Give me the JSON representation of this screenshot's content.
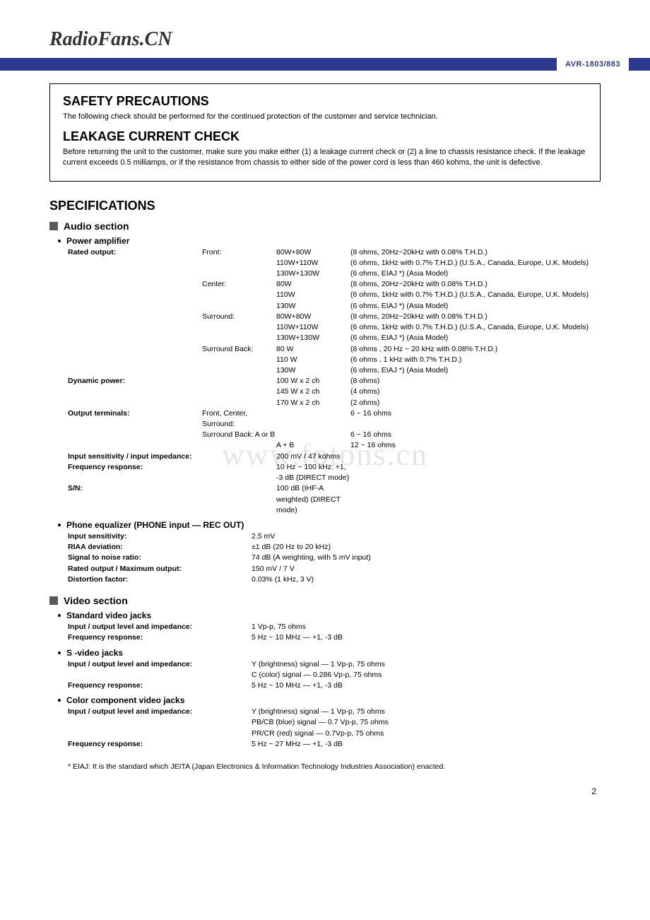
{
  "brand": "RadioFans.CN",
  "header_model": "AVR-1803/883",
  "colors": {
    "bar_bg": "#2b3a8f",
    "bar_text": "#2b3a8f",
    "square": "#5a5a5a"
  },
  "safety_box": {
    "h1": "SAFETY PRECAUTIONS",
    "p1": "The following check should be performed for the continued protection of the customer and service technician.",
    "h2": "LEAKAGE CURRENT CHECK",
    "p2": "Before returning the unit to the customer, make sure you make either (1) a leakage current check or (2) a line to chassis resistance check. If the leakage current exceeds 0.5 milliamps, or if the resistance from chassis to either side of the power cord is less than 460 kohms, the unit is defective."
  },
  "specs_title": "SPECIFICATIONS",
  "audio": {
    "title": "Audio section",
    "power_amp": {
      "title": "Power amplifier",
      "rows": [
        {
          "label": "Rated output:",
          "a": "Front:",
          "b": "80W+80W",
          "c": "(8 ohms, 20Hz~20kHz with 0.08% T.H.D.)"
        },
        {
          "label": "",
          "a": "",
          "b": "110W+110W",
          "c": "(6 ohms, 1kHz with 0.7% T.H.D.) (U.S.A., Canada, Europe, U.K. Models)"
        },
        {
          "label": "",
          "a": "",
          "b": "130W+130W",
          "c": "(6 ohms, EIAJ *) (Asia Model)"
        },
        {
          "label": "",
          "a": "Center:",
          "b": "80W",
          "c": "(8 ohms, 20Hz~20kHz with 0.08% T.H.D.)"
        },
        {
          "label": "",
          "a": "",
          "b": "110W",
          "c": "(6 ohms, 1kHz with 0.7% T.H.D.) (U.S.A., Canada, Europe, U.K. Models)"
        },
        {
          "label": "",
          "a": "",
          "b": "130W",
          "c": "(6 ohms, EIAJ *) (Asia Model)"
        },
        {
          "label": "",
          "a": "Surround:",
          "b": "80W+80W",
          "c": "(8 ohms, 20Hz~20kHz with 0.08% T.H.D.)"
        },
        {
          "label": "",
          "a": "",
          "b": "110W+110W",
          "c": "(6 ohms, 1kHz with 0.7% T.H.D.) (U.S.A., Canada, Europe, U.K. Models)"
        },
        {
          "label": "",
          "a": "",
          "b": "130W+130W",
          "c": "(6 ohms, EIAJ *) (Asia Model)"
        },
        {
          "label": "",
          "a": "Surround Back:",
          "b": "80 W",
          "c": "(8 ohms , 20 Hz ~ 20 kHz with 0.08% T.H.D.)"
        },
        {
          "label": "",
          "a": "",
          "b": "110 W",
          "c": "(6 ohms , 1 kHz with 0.7% T.H.D.)"
        },
        {
          "label": "",
          "a": "",
          "b": "130W",
          "c": "(6 ohms, EIAJ *) (Asia Model)"
        },
        {
          "label": "Dynamic power:",
          "a": "",
          "b": "100 W x 2 ch",
          "c": "(8 ohms)"
        },
        {
          "label": "",
          "a": "",
          "b": "145 W x 2 ch",
          "c": "(4 ohms)"
        },
        {
          "label": "",
          "a": "",
          "b": "170 W x 2 ch",
          "c": "(2 ohms)"
        },
        {
          "label": "Output terminals:",
          "a": "Front, Center, Surround:",
          "b": "",
          "c": "6 ~ 16 ohms"
        },
        {
          "label": "",
          "a": "Surround Back: A or B",
          "b": "",
          "c": "6 ~ 16 ohms"
        },
        {
          "label": "",
          "a": "",
          "b": "A + B",
          "c": "12 ~ 16 ohms"
        },
        {
          "label": "Input sensitivity / input impedance:",
          "a": "",
          "b": "200 mV / 47 kohms",
          "c": ""
        },
        {
          "label": "Frequency response:",
          "a": "",
          "b": "10 Hz ~ 100 kHz: +1, -3 dB (DIRECT mode)",
          "c": ""
        },
        {
          "label": "S/N:",
          "a": "",
          "b": "100 dB (IHF-A weighted) (DIRECT mode)",
          "c": ""
        }
      ]
    },
    "phone_eq": {
      "title": "Phone equalizer (PHONE input — REC OUT)",
      "rows": [
        {
          "label": "Input sensitivity:",
          "val": "2.5 mV"
        },
        {
          "label": "RIAA deviation:",
          "val": "±1 dB (20 Hz to 20 kHz)"
        },
        {
          "label": "Signal to noise ratio:",
          "val": "74 dB (A weighting, with 5 mV input)"
        },
        {
          "label": "Rated output / Maximum output:",
          "val": "150 mV / 7 V"
        },
        {
          "label": "Distortion factor:",
          "val": "0.03% (1 kHz, 3 V)"
        }
      ]
    }
  },
  "video": {
    "title": "Video section",
    "groups": [
      {
        "title": "Standard video jacks",
        "rows": [
          {
            "label": "Input / output level and impedance:",
            "val": "1 Vp-p, 75 ohms"
          },
          {
            "label": "Frequency response:",
            "val": "5 Hz ~ 10 MHz — +1, -3 dB"
          }
        ]
      },
      {
        "title": "S -video jacks",
        "rows": [
          {
            "label": "Input / output level and impedance:",
            "val": "Y (brightness) signal — 1 Vp-p, 75 ohms"
          },
          {
            "label": "",
            "val": "C (color) signal — 0.286 Vp-p, 75 ohms"
          },
          {
            "label": "Frequency response:",
            "val": "5 Hz ~ 10 MHz — +1, -3 dB"
          }
        ]
      },
      {
        "title": "Color component video jacks",
        "rows": [
          {
            "label": "Input / output level and impedance:",
            "val": "Y (brightness) signal — 1 Vp-p, 75 ohms"
          },
          {
            "label": "",
            "val": "PB/CB (blue) signal — 0.7 Vp-p, 75 ohms"
          },
          {
            "label": "",
            "val": "PR/CR (red) signal — 0.7Vp-p, 75 ohms"
          },
          {
            "label": "Frequency response:",
            "val": "5 Hz ~ 27 MHz — +1, -3 dB"
          }
        ]
      }
    ]
  },
  "footnote": "* EIAJ: It is the standard which JEITA (Japan Electronics & Information Technology Industries Association) enacted.",
  "watermark": "www.fotons.cn",
  "page_number": "2"
}
